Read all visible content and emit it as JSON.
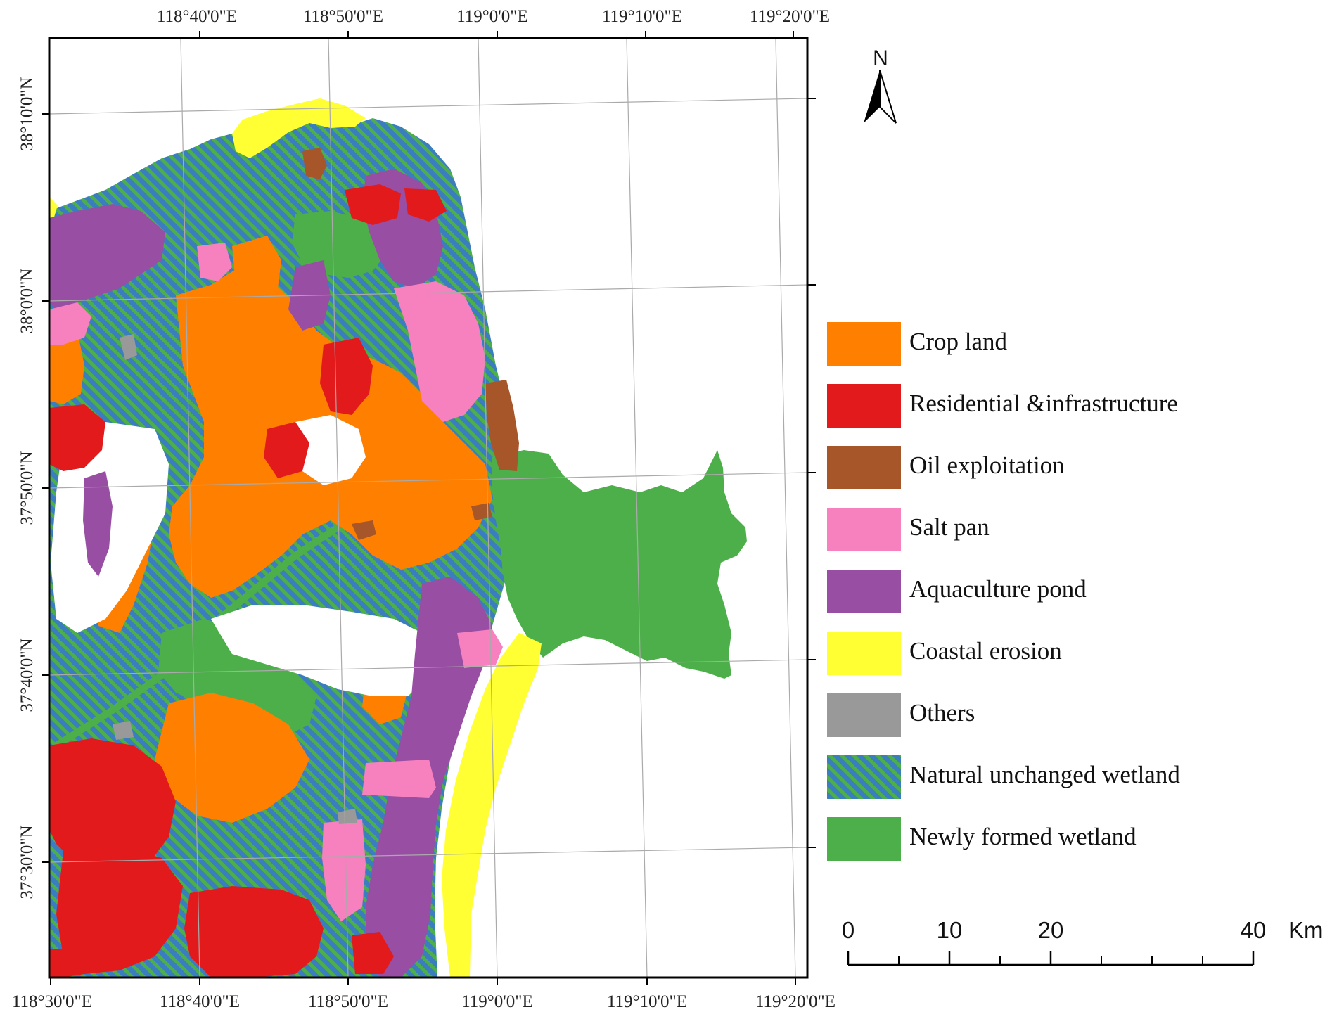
{
  "map": {
    "top_lon_labels": [
      "118°40'0\"E",
      "118°50'0\"E",
      "119°0'0\"E",
      "119°10'0\"E",
      "119°20'0\"E"
    ],
    "bottom_lon_labels": [
      "118°30'0\"E",
      "118°40'0\"E",
      "118°50'0\"E",
      "119°0'0\"E",
      "119°10'0\"E",
      "119°20'0\"E"
    ],
    "lat_labels": [
      "38°10'0\"N",
      "38°0'0\"N",
      "37°50'0\"N",
      "37°40'0\"N",
      "37°30'0\"N"
    ]
  },
  "legend": {
    "items": [
      {
        "label": "Crop land",
        "color": "#ff8000"
      },
      {
        "label": "Residential &infrastructure",
        "color": "#e31a1c"
      },
      {
        "label": "Oil exploitation",
        "color": "#a65628"
      },
      {
        "label": "Salt pan",
        "color": "#f781bf"
      },
      {
        "label": "Aquaculture pond",
        "color": "#984ea3"
      },
      {
        "label": "Coastal erosion",
        "color": "#ffff33"
      },
      {
        "label": "Others",
        "color": "#999999"
      },
      {
        "label": "Natural unchanged wetland",
        "color": "hatch"
      },
      {
        "label": "Newly formed wetland",
        "color": "#4daf4a"
      }
    ]
  },
  "north_arrow": {
    "label": "N"
  },
  "scale_bar": {
    "ticks": [
      "0",
      "10",
      "20",
      "40"
    ],
    "unit": "Km"
  },
  "colors": {
    "crop": "#ff8000",
    "residential": "#e31a1c",
    "oil": "#a65628",
    "salt": "#f781bf",
    "aquaculture": "#984ea3",
    "erosion": "#ffff33",
    "others": "#999999",
    "wetland_base": "#3a7ebf",
    "wetland_stripe": "#4daf4a",
    "new_wetland": "#4daf4a"
  }
}
